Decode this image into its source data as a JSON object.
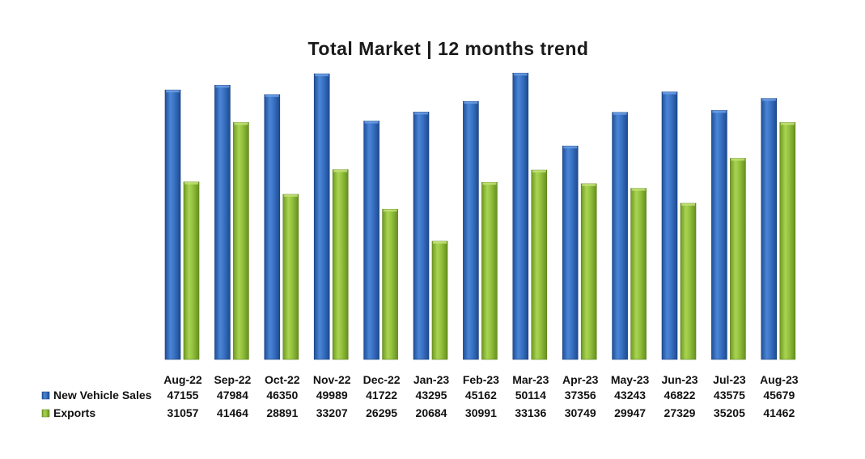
{
  "chart_data": {
    "type": "bar",
    "title": "Total Market | 12 months trend",
    "categories": [
      "Aug-22",
      "Sep-22",
      "Oct-22",
      "Nov-22",
      "Dec-22",
      "Jan-23",
      "Feb-23",
      "Mar-23",
      "Apr-23",
      "May-23",
      "Jun-23",
      "Jul-23",
      "Aug-23"
    ],
    "series": [
      {
        "name": "New Vehicle Sales",
        "color": "#3a72c4",
        "values": [
          47155,
          47984,
          46350,
          49989,
          41722,
          43295,
          45162,
          50114,
          37356,
          43243,
          46822,
          43575,
          45679
        ],
        "labels": [
          "47155",
          "47984",
          "46350",
          "49989",
          "41722",
          "43295",
          "45162",
          "50114",
          "37356",
          "43243",
          "46822",
          "43575",
          "45679"
        ]
      },
      {
        "name": "Exports",
        "color": "#93c13d",
        "values": [
          31057,
          41464,
          28891,
          33207,
          26295,
          20684,
          30991,
          33136,
          30749,
          29947,
          27329,
          35205,
          41462
        ],
        "labels": [
          "31057",
          "41464",
          "28891",
          "33207",
          "26295",
          "20684",
          "30991",
          "33136",
          "30749",
          "29947",
          "27329",
          "35205",
          "41462"
        ]
      }
    ],
    "xlabel": "",
    "ylabel": "",
    "ylim": [
      0,
      51000
    ],
    "grid": false,
    "legend": "data-table-left",
    "data_table": true
  }
}
